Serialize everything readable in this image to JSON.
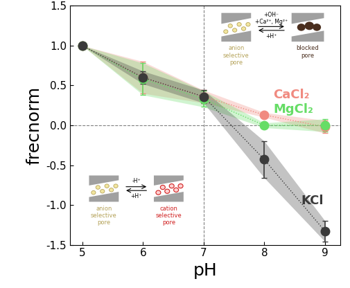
{
  "chart_data": {
    "type": "scatter",
    "x_label": "pH",
    "y_label": "frecnorm",
    "xlim": [
      4.8,
      9.25
    ],
    "xticks": [
      5,
      6,
      7,
      8,
      9
    ],
    "ylim": [
      -1.5,
      1.5
    ],
    "yticks": [
      -1.5,
      -1.0,
      -0.5,
      0.0,
      0.5,
      1.0,
      1.5
    ],
    "vlines": [
      7
    ],
    "hlines": [
      0
    ],
    "marker": "o",
    "line_style": "dotted",
    "series": [
      {
        "name": "CaCl₂",
        "color": "#f08a80",
        "x": [
          5,
          6,
          7,
          8,
          9
        ],
        "values": [
          1.0,
          0.6,
          0.36,
          0.13,
          -0.02
        ],
        "errors": [
          0.0,
          0.2,
          0.08,
          0.03,
          0.08
        ]
      },
      {
        "name": "MgCl₂",
        "color": "#66dd66",
        "x": [
          5,
          6,
          7,
          8,
          9
        ],
        "values": [
          1.0,
          0.58,
          0.33,
          0.0,
          0.0
        ],
        "errors": [
          0.0,
          0.2,
          0.1,
          0.03,
          0.08
        ]
      },
      {
        "name": "KCl",
        "color": "#3a3a3a",
        "x": [
          5,
          6,
          7,
          8,
          9
        ],
        "values": [
          1.0,
          0.6,
          0.36,
          -0.43,
          -1.33
        ],
        "errors": [
          0.0,
          0.08,
          0.08,
          0.23,
          0.13
        ]
      }
    ],
    "annotations": {
      "top": [
        "anion selective pore",
        "+OH⁻",
        "+Ca²⁺, Mg²⁺",
        "+H⁺",
        "blocked pore"
      ],
      "bottom": [
        "anion selective pore",
        "-H⁺",
        "+H⁺",
        "cation selective pore"
      ]
    }
  }
}
